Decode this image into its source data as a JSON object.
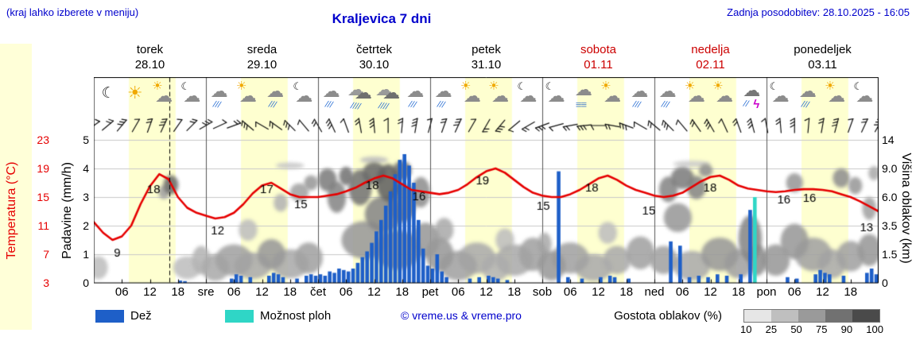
{
  "header": {
    "hint": "(kraj lahko izberete v meniju)",
    "title": "Kraljevica 7 dni",
    "updated": "Zadnja posodobitev: 28.10.2025 - 16:05"
  },
  "days": [
    {
      "name": "torek",
      "date": "28.10",
      "weekend": false
    },
    {
      "name": "sreda",
      "date": "29.10",
      "weekend": false
    },
    {
      "name": "četrtek",
      "date": "30.10",
      "weekend": false
    },
    {
      "name": "petek",
      "date": "31.10",
      "weekend": false
    },
    {
      "name": "sobota",
      "date": "01.11",
      "weekend": true
    },
    {
      "name": "nedelja",
      "date": "02.11",
      "weekend": true
    },
    {
      "name": "ponedeljek",
      "date": "03.11",
      "weekend": false
    }
  ],
  "axes": {
    "temp_title": "Temperatura (°C)",
    "temp_ticks": [
      "23",
      "19",
      "15",
      "11",
      "7",
      "3"
    ],
    "rain_title": "Padavine (mm/h)",
    "rain_ticks": [
      "5",
      "4",
      "3",
      "2",
      "1",
      "0"
    ],
    "cloud_title": "Višina oblakov (km)",
    "cloud_ticks": [
      "14",
      "9.0",
      "6.0",
      "3.5",
      "1.5",
      "0"
    ],
    "x_hour_labels": [
      "06",
      "12",
      "18"
    ],
    "x_day_abbrevs": [
      "sre",
      "čet",
      "pet",
      "sob",
      "ned",
      "pon"
    ]
  },
  "icons": [
    "moon",
    "sun",
    "sun-cloud",
    "moon-cloud",
    "rain",
    "sun-cloud",
    "rain",
    "moon-cloud",
    "rain",
    "heavy-rain",
    "heavy-rain",
    "rain",
    "rain",
    "sun-cloud",
    "sun-cloud",
    "moon-cloud",
    "moon-cloud",
    "fog",
    "sun-cloud",
    "rain",
    "rain",
    "sun-cloud",
    "sun-cloud",
    "storm",
    "moon-cloud",
    "rain",
    "sun-cloud",
    "moon-cloud"
  ],
  "legend": {
    "rain": "Dež",
    "showers": "Možnost ploh",
    "copyright": "© vreme.us & vreme.pro",
    "cloud_density": "Gostota oblakov (%)",
    "scale_labels": [
      "10",
      "25",
      "50",
      "75",
      "90",
      "100"
    ]
  },
  "colors": {
    "accent_blue": "#0000cc",
    "temp_red": "#e60000",
    "weekend_red": "#cc0000",
    "rain_blue": "#1e5fc8",
    "shower_cyan": "#2fd6c6",
    "day_band": "#feffd0",
    "left_strip": "#ffffd8"
  },
  "chart_data": {
    "type": "meteogram",
    "x_unit": "hours from 28.10 00:00",
    "x_range": [
      0,
      168
    ],
    "rain_axis": {
      "label": "Padavine (mm/h)",
      "range": [
        0,
        5
      ]
    },
    "temp_axis": {
      "label": "Temperatura (°C)",
      "range": [
        3,
        23
      ]
    },
    "cloud_axis": {
      "label": "Višina oblakov (km)",
      "ticks_km": [
        0,
        1.5,
        3.5,
        6,
        9,
        14
      ]
    },
    "now_hour": 16.2,
    "day_band_hours": [
      7.5,
      17.5
    ],
    "temperature": [
      [
        0,
        11.5
      ],
      [
        2,
        10
      ],
      [
        4,
        9
      ],
      [
        6,
        9.5
      ],
      [
        8,
        11
      ],
      [
        10,
        14
      ],
      [
        12,
        16.5
      ],
      [
        14,
        18.2
      ],
      [
        16,
        17.5
      ],
      [
        18,
        15
      ],
      [
        20,
        13.5
      ],
      [
        22,
        12.8
      ],
      [
        24,
        12.4
      ],
      [
        26,
        12
      ],
      [
        28,
        12.2
      ],
      [
        30,
        12.8
      ],
      [
        32,
        14
      ],
      [
        34,
        15.5
      ],
      [
        36,
        16.6
      ],
      [
        38,
        17
      ],
      [
        40,
        16.2
      ],
      [
        42,
        15.4
      ],
      [
        44,
        15
      ],
      [
        46,
        15
      ],
      [
        48,
        15
      ],
      [
        50,
        15.2
      ],
      [
        52,
        15.4
      ],
      [
        54,
        15.8
      ],
      [
        56,
        16.3
      ],
      [
        58,
        17
      ],
      [
        60,
        17.6
      ],
      [
        62,
        18
      ],
      [
        64,
        17.6
      ],
      [
        66,
        16.8
      ],
      [
        68,
        16
      ],
      [
        70,
        15.8
      ],
      [
        72,
        15.6
      ],
      [
        74,
        15.4
      ],
      [
        76,
        15.6
      ],
      [
        78,
        16
      ],
      [
        80,
        16.8
      ],
      [
        82,
        17.8
      ],
      [
        84,
        18.6
      ],
      [
        86,
        19
      ],
      [
        88,
        18.4
      ],
      [
        90,
        17.4
      ],
      [
        92,
        16.4
      ],
      [
        94,
        15.6
      ],
      [
        96,
        15.2
      ],
      [
        98,
        15
      ],
      [
        100,
        15
      ],
      [
        102,
        15.4
      ],
      [
        104,
        16
      ],
      [
        106,
        16.8
      ],
      [
        108,
        17.6
      ],
      [
        110,
        18
      ],
      [
        112,
        17.4
      ],
      [
        114,
        16.6
      ],
      [
        116,
        16
      ],
      [
        118,
        15.6
      ],
      [
        120,
        15.2
      ],
      [
        122,
        15
      ],
      [
        124,
        15.2
      ],
      [
        126,
        15.6
      ],
      [
        128,
        16.4
      ],
      [
        130,
        17.2
      ],
      [
        132,
        17.8
      ],
      [
        134,
        18
      ],
      [
        136,
        17.4
      ],
      [
        138,
        16.6
      ],
      [
        140,
        16.2
      ],
      [
        142,
        16
      ],
      [
        144,
        15.8
      ],
      [
        146,
        15.7
      ],
      [
        148,
        15.8
      ],
      [
        150,
        16
      ],
      [
        152,
        16.1
      ],
      [
        154,
        16.1
      ],
      [
        156,
        16
      ],
      [
        158,
        15.8
      ],
      [
        160,
        15.4
      ],
      [
        162,
        15
      ],
      [
        164,
        14.4
      ],
      [
        166,
        13.7
      ],
      [
        168,
        13
      ]
    ],
    "temp_labels": [
      [
        5,
        7.1,
        "9"
      ],
      [
        12.8,
        16,
        "18"
      ],
      [
        26.5,
        10.2,
        "12"
      ],
      [
        37,
        16,
        "17"
      ],
      [
        44.3,
        13.9,
        "15"
      ],
      [
        59.6,
        16.6,
        "18"
      ],
      [
        69.6,
        15.0,
        "16"
      ],
      [
        83.2,
        17.2,
        "19"
      ],
      [
        96.2,
        13.7,
        "15"
      ],
      [
        106.6,
        16.2,
        "18"
      ],
      [
        118.8,
        13.0,
        "15"
      ],
      [
        131.9,
        16.2,
        "18"
      ],
      [
        147.7,
        14.6,
        "16"
      ],
      [
        153.2,
        14.8,
        "16"
      ],
      [
        165.4,
        10.7,
        "13"
      ]
    ],
    "rain_bars": [
      [
        18,
        0.08
      ],
      [
        19,
        0.06
      ],
      [
        29,
        0.15
      ],
      [
        30,
        0.3
      ],
      [
        31,
        0.25
      ],
      [
        33,
        0.2
      ],
      [
        37,
        0.25
      ],
      [
        38,
        0.35
      ],
      [
        39,
        0.3
      ],
      [
        40,
        0.2
      ],
      [
        43,
        0.15
      ],
      [
        45,
        0.25
      ],
      [
        46,
        0.3
      ],
      [
        47,
        0.25
      ],
      [
        48,
        0.3
      ],
      [
        49,
        0.25
      ],
      [
        50,
        0.4
      ],
      [
        51,
        0.35
      ],
      [
        52,
        0.5
      ],
      [
        53,
        0.45
      ],
      [
        54,
        0.4
      ],
      [
        55,
        0.5
      ],
      [
        56,
        0.7
      ],
      [
        57,
        0.9
      ],
      [
        58,
        1.1
      ],
      [
        59,
        1.4
      ],
      [
        60,
        1.8
      ],
      [
        61,
        2.2
      ],
      [
        62,
        2.7
      ],
      [
        63,
        3.2
      ],
      [
        64,
        3.8
      ],
      [
        65,
        4.3
      ],
      [
        66,
        4.5
      ],
      [
        67,
        4.1
      ],
      [
        68,
        3.5
      ],
      [
        69,
        2.2
      ],
      [
        70,
        1.2
      ],
      [
        71,
        0.6
      ],
      [
        72,
        0.5
      ],
      [
        73,
        1.0
      ],
      [
        74,
        0.4
      ],
      [
        75,
        0.2
      ],
      [
        80,
        0.15
      ],
      [
        82,
        0.2
      ],
      [
        84,
        0.25
      ],
      [
        85,
        0.2
      ],
      [
        86,
        0.15
      ],
      [
        88,
        0.1
      ],
      [
        99,
        3.9
      ],
      [
        101,
        0.2
      ],
      [
        104,
        0.15
      ],
      [
        108,
        0.2
      ],
      [
        110,
        0.25
      ],
      [
        111,
        0.2
      ],
      [
        114,
        0.15
      ],
      [
        123,
        1.45
      ],
      [
        125,
        1.3
      ],
      [
        127,
        0.2
      ],
      [
        129,
        0.25
      ],
      [
        131,
        0.2
      ],
      [
        133,
        0.3
      ],
      [
        135,
        0.25
      ],
      [
        138,
        0.3
      ],
      [
        140,
        2.55
      ],
      [
        141,
        3.0,
        "shower"
      ],
      [
        148,
        0.2
      ],
      [
        150,
        0.15
      ],
      [
        154,
        0.3
      ],
      [
        155,
        0.45
      ],
      [
        156,
        0.35
      ],
      [
        157,
        0.3
      ],
      [
        160,
        0.25
      ],
      [
        165,
        0.35
      ],
      [
        166,
        0.5
      ],
      [
        167,
        0.3
      ]
    ],
    "clouds": [
      [
        1,
        0.8,
        2,
        0.6,
        0.3
      ],
      [
        16.5,
        7.3,
        1.6,
        1.0,
        0.75
      ],
      [
        15,
        6.5,
        1.2,
        0.7,
        0.45
      ],
      [
        20,
        0.8,
        3,
        0.6,
        0.3
      ],
      [
        23,
        1.2,
        2,
        0.8,
        0.35
      ],
      [
        26,
        0.8,
        3,
        0.7,
        0.4
      ],
      [
        30,
        1.2,
        4,
        0.9,
        0.45
      ],
      [
        34,
        0.9,
        4,
        0.7,
        0.4
      ],
      [
        38,
        1.5,
        3,
        0.9,
        0.5
      ],
      [
        42,
        1.0,
        4,
        0.8,
        0.4
      ],
      [
        46,
        1.3,
        3,
        0.9,
        0.45
      ],
      [
        33,
        3.2,
        2,
        0.8,
        0.3
      ],
      [
        40,
        5.5,
        1.5,
        0.8,
        0.35
      ],
      [
        44,
        6.5,
        2,
        0.9,
        0.45
      ],
      [
        46.5,
        7.5,
        1.5,
        0.8,
        0.5
      ],
      [
        42,
        9.5,
        3,
        0.5,
        0.25
      ],
      [
        50,
        7.8,
        2,
        1.2,
        0.65
      ],
      [
        52,
        6.0,
        2,
        1.5,
        0.6
      ],
      [
        54,
        8.2,
        1.5,
        1.0,
        0.7
      ],
      [
        57,
        7.0,
        2.5,
        1.8,
        0.7
      ],
      [
        60,
        8.5,
        2.5,
        1.3,
        0.75
      ],
      [
        63,
        7.5,
        2.5,
        2.0,
        0.8
      ],
      [
        66,
        8.8,
        2,
        1.2,
        0.7
      ],
      [
        62,
        4.5,
        4,
        1.5,
        0.6
      ],
      [
        66,
        5.5,
        3,
        1.8,
        0.65
      ],
      [
        58,
        2.5,
        5,
        1.3,
        0.5
      ],
      [
        65,
        1.8,
        5,
        1.2,
        0.55
      ],
      [
        70,
        6.5,
        2,
        1.5,
        0.55
      ],
      [
        71,
        2.5,
        3,
        1.2,
        0.5
      ],
      [
        60,
        10.5,
        3,
        0.6,
        0.3
      ],
      [
        74,
        1.5,
        3,
        1.0,
        0.5
      ],
      [
        78,
        0.9,
        4,
        0.8,
        0.45
      ],
      [
        82,
        1.3,
        4,
        0.9,
        0.4
      ],
      [
        86,
        0.8,
        3,
        0.7,
        0.35
      ],
      [
        90,
        1.2,
        4,
        0.9,
        0.4
      ],
      [
        94,
        1.5,
        3,
        1.0,
        0.45
      ],
      [
        75,
        3.2,
        2,
        0.9,
        0.4
      ],
      [
        88,
        2.5,
        2,
        0.8,
        0.3
      ],
      [
        96.5,
        2.2,
        1.5,
        0.8,
        0.4
      ],
      [
        98,
        0.9,
        3,
        0.8,
        0.5
      ],
      [
        102,
        1.3,
        4,
        0.9,
        0.45
      ],
      [
        107,
        0.8,
        4,
        0.7,
        0.4
      ],
      [
        112,
        1.2,
        3,
        0.8,
        0.4
      ],
      [
        117,
        1.6,
        3,
        1.0,
        0.45
      ],
      [
        110,
        3.0,
        2,
        0.8,
        0.3
      ],
      [
        122,
        1.2,
        3,
        0.8,
        0.45
      ],
      [
        123,
        6.8,
        2,
        1.3,
        0.6
      ],
      [
        126,
        8.0,
        2.5,
        1.2,
        0.65
      ],
      [
        129,
        7.0,
        2,
        1.2,
        0.6
      ],
      [
        125,
        4.2,
        3,
        1.2,
        0.5
      ],
      [
        131,
        8.8,
        1.5,
        0.8,
        0.55
      ],
      [
        134,
        1.5,
        4,
        1.0,
        0.5
      ],
      [
        138,
        1.0,
        3,
        0.8,
        0.45
      ],
      [
        140.5,
        2.6,
        2.5,
        1.6,
        0.6
      ],
      [
        142,
        1.2,
        2,
        0.9,
        0.55
      ],
      [
        128,
        0.9,
        4,
        0.8,
        0.4
      ],
      [
        128,
        9.8,
        4,
        0.5,
        0.22
      ],
      [
        146,
        1.2,
        3,
        0.9,
        0.5
      ],
      [
        150,
        2.4,
        3,
        1.2,
        0.5
      ],
      [
        154,
        1.5,
        4,
        1.0,
        0.45
      ],
      [
        158,
        1.0,
        3,
        0.8,
        0.4
      ],
      [
        162,
        1.4,
        3,
        0.9,
        0.45
      ],
      [
        166,
        1.8,
        2.5,
        1.0,
        0.5
      ],
      [
        150,
        7.5,
        1.8,
        1.0,
        0.5
      ],
      [
        160,
        8.0,
        1.8,
        1.0,
        0.55
      ],
      [
        163,
        7.2,
        1.5,
        0.9,
        0.5
      ],
      [
        166,
        5.0,
        1.5,
        1.0,
        0.45
      ],
      [
        167,
        8.5,
        1.2,
        0.8,
        0.4
      ]
    ],
    "wind_angles": [
      35,
      40,
      50,
      60,
      70,
      65,
      55,
      45,
      30,
      25,
      20,
      140,
      150,
      145,
      135,
      130,
      120,
      115,
      110,
      100,
      95,
      90,
      85,
      80,
      75,
      70,
      65,
      60,
      240,
      230,
      220,
      210,
      200,
      195,
      190,
      185,
      180,
      170,
      160,
      150,
      140,
      135,
      130,
      125,
      120,
      115,
      110,
      105,
      100,
      95,
      90,
      85,
      80,
      75,
      70,
      65,
      60
    ]
  }
}
